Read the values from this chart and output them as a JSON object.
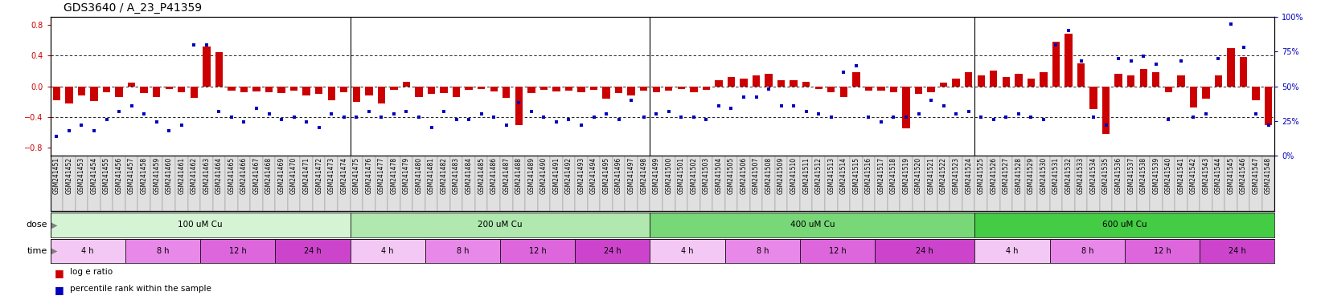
{
  "title": "GDS3640 / A_23_P41359",
  "samples": [
    "GSM241451",
    "GSM241452",
    "GSM241453",
    "GSM241454",
    "GSM241455",
    "GSM241456",
    "GSM241457",
    "GSM241458",
    "GSM241459",
    "GSM241460",
    "GSM241461",
    "GSM241462",
    "GSM241463",
    "GSM241464",
    "GSM241465",
    "GSM241466",
    "GSM241467",
    "GSM241468",
    "GSM241469",
    "GSM241470",
    "GSM241471",
    "GSM241472",
    "GSM241473",
    "GSM241474",
    "GSM241475",
    "GSM241476",
    "GSM241477",
    "GSM241478",
    "GSM241479",
    "GSM241480",
    "GSM241481",
    "GSM241482",
    "GSM241483",
    "GSM241484",
    "GSM241485",
    "GSM241486",
    "GSM241487",
    "GSM241488",
    "GSM241489",
    "GSM241490",
    "GSM241491",
    "GSM241492",
    "GSM241493",
    "GSM241494",
    "GSM241495",
    "GSM241496",
    "GSM241497",
    "GSM241498",
    "GSM241499",
    "GSM241500",
    "GSM241501",
    "GSM241502",
    "GSM241503",
    "GSM241504",
    "GSM241505",
    "GSM241506",
    "GSM241507",
    "GSM241508",
    "GSM241509",
    "GSM241510",
    "GSM241511",
    "GSM241512",
    "GSM241513",
    "GSM241514",
    "GSM241515",
    "GSM241516",
    "GSM241517",
    "GSM241518",
    "GSM241519",
    "GSM241520",
    "GSM241521",
    "GSM241522",
    "GSM241523",
    "GSM241524",
    "GSM241525",
    "GSM241526",
    "GSM241527",
    "GSM241528",
    "GSM241529",
    "GSM241530",
    "GSM241531",
    "GSM241532",
    "GSM241533",
    "GSM241534",
    "GSM241535",
    "GSM241536",
    "GSM241537",
    "GSM241538",
    "GSM241539",
    "GSM241540",
    "GSM241541",
    "GSM241542",
    "GSM241543",
    "GSM241544",
    "GSM241545",
    "GSM241546",
    "GSM241547",
    "GSM241548"
  ],
  "log_ratio": [
    -0.18,
    -0.22,
    -0.12,
    -0.19,
    -0.08,
    -0.14,
    0.05,
    -0.09,
    -0.14,
    -0.04,
    -0.08,
    -0.15,
    0.52,
    0.44,
    -0.06,
    -0.08,
    -0.07,
    -0.08,
    -0.09,
    -0.06,
    -0.12,
    -0.1,
    -0.18,
    -0.08,
    -0.2,
    -0.12,
    -0.22,
    -0.05,
    0.06,
    -0.14,
    -0.1,
    -0.09,
    -0.14,
    -0.05,
    -0.04,
    -0.07,
    -0.15,
    -0.5,
    -0.09,
    -0.05,
    -0.07,
    -0.06,
    -0.08,
    -0.05,
    -0.16,
    -0.09,
    -0.12,
    -0.06,
    -0.08,
    -0.06,
    -0.04,
    -0.08,
    -0.05,
    0.08,
    0.12,
    0.1,
    0.14,
    0.16,
    0.08,
    0.08,
    0.06,
    -0.04,
    -0.08,
    -0.14,
    0.18,
    -0.06,
    -0.06,
    -0.08,
    -0.55,
    -0.1,
    -0.08,
    0.05,
    0.1,
    0.18,
    0.14,
    0.2,
    0.12,
    0.16,
    0.1,
    0.18,
    0.58,
    0.68,
    0.3,
    -0.3,
    -0.62,
    0.16,
    0.14,
    0.22,
    0.18,
    -0.08,
    0.14,
    -0.28,
    -0.16,
    0.14,
    0.5,
    0.38,
    -0.18,
    -0.5
  ],
  "percentile": [
    14,
    18,
    22,
    18,
    26,
    32,
    36,
    30,
    24,
    18,
    22,
    80,
    80,
    32,
    28,
    24,
    34,
    30,
    26,
    28,
    24,
    20,
    30,
    28,
    28,
    32,
    28,
    30,
    32,
    28,
    20,
    32,
    26,
    26,
    30,
    28,
    22,
    38,
    32,
    28,
    24,
    26,
    22,
    28,
    30,
    26,
    40,
    28,
    30,
    32,
    28,
    28,
    26,
    36,
    34,
    42,
    42,
    48,
    36,
    36,
    32,
    30,
    28,
    60,
    65,
    28,
    24,
    28,
    28,
    30,
    40,
    36,
    30,
    32,
    28,
    26,
    28,
    30,
    28,
    26,
    80,
    90,
    68,
    28,
    22,
    70,
    68,
    72,
    66,
    26,
    68,
    28,
    30,
    70,
    95,
    78,
    30,
    22
  ],
  "dose_starts": [
    0,
    24,
    48,
    74
  ],
  "dose_ends": [
    24,
    48,
    74,
    98
  ],
  "dose_labels": [
    "100 uM Cu",
    "200 uM Cu",
    "400 uM Cu",
    "600 uM Cu"
  ],
  "dose_colors": [
    "#d4f4d4",
    "#b0e8b0",
    "#78d878",
    "#44cc44"
  ],
  "time_labels": [
    "4 h",
    "8 h",
    "12 h",
    "24 h"
  ],
  "time_colors": [
    "#f4c8f4",
    "#e888e8",
    "#dd66dd",
    "#cc44cc"
  ],
  "ylim_left": [
    -0.9,
    0.9
  ],
  "ylim_right": [
    0,
    100
  ],
  "yticks_left": [
    -0.8,
    -0.4,
    0.0,
    0.4,
    0.8
  ],
  "yticks_right": [
    0,
    25,
    50,
    75,
    100
  ],
  "bar_color": "#cc0000",
  "dot_color": "#0000bb",
  "title_fontsize": 10,
  "tick_fontsize": 5.5,
  "background_color": "#ffffff",
  "xtick_bg": "#e0e0e0"
}
